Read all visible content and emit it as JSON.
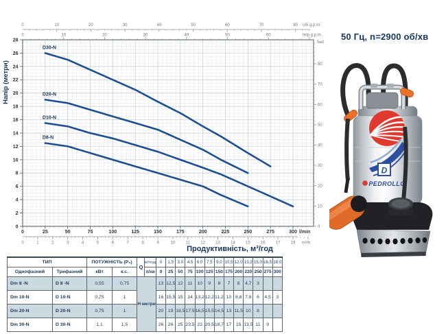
{
  "header": {
    "frequency_title": "50 Гц, n=2900 об/хв"
  },
  "chart_data": {
    "type": "line",
    "title": "",
    "xlabel": "Продуктивність, м³/год",
    "ylabel": "Напір (метри)",
    "grid": true,
    "x_axis_lmin": {
      "unit": "l/min",
      "ticks": [
        0,
        25,
        50,
        75,
        100,
        125,
        150,
        175,
        200,
        225,
        250,
        275,
        300
      ],
      "max": 323
    },
    "x_axis_m3h": {
      "unit": "m³/h",
      "ticks": [
        0,
        1,
        2,
        3,
        4,
        5,
        6,
        7,
        8,
        9,
        10,
        11,
        12,
        13,
        14,
        15,
        16,
        17,
        18
      ],
      "lmin_per_unit": 16.6667
    },
    "top_axis_us_gpm": {
      "unit": "US g.p.m.",
      "ticks": [
        0,
        10,
        20,
        30,
        40,
        50,
        60,
        70,
        80
      ],
      "lmin_per_unit": 3.785
    },
    "top_axis_imp_gpm": {
      "unit": "Imp g.p.m.",
      "ticks": [
        0,
        10,
        20,
        30,
        40,
        50,
        60
      ],
      "lmin_per_unit": 4.546
    },
    "right_axis_feet": {
      "unit": "feet",
      "ticks": [
        0,
        10,
        20,
        30,
        40,
        50,
        60,
        70,
        80
      ],
      "m_per_unit": 0.3048
    },
    "y_axis_m": {
      "ticks": [
        0,
        2,
        4,
        6,
        8,
        10,
        12,
        14,
        16,
        18,
        20,
        22,
        24,
        26,
        28
      ],
      "max": 28
    },
    "series": [
      {
        "name": "D30-N",
        "points_lmin_m": [
          [
            25,
            26
          ],
          [
            50,
            25
          ],
          [
            75,
            23.5
          ],
          [
            100,
            22
          ],
          [
            125,
            20.5
          ],
          [
            150,
            18.7
          ],
          [
            175,
            17
          ],
          [
            200,
            15
          ],
          [
            220,
            13.5
          ],
          [
            250,
            11
          ],
          [
            275,
            9
          ]
        ]
      },
      {
        "name": "D20-N",
        "points_lmin_m": [
          [
            25,
            19
          ],
          [
            50,
            18.5
          ],
          [
            75,
            17.5
          ],
          [
            100,
            16.5
          ],
          [
            125,
            15.5
          ],
          [
            150,
            14.5
          ],
          [
            175,
            13
          ],
          [
            200,
            11.5
          ],
          [
            220,
            10
          ],
          [
            250,
            8
          ]
        ]
      },
      {
        "name": "D10-N",
        "points_lmin_m": [
          [
            25,
            15.5
          ],
          [
            50,
            15
          ],
          [
            75,
            14
          ],
          [
            100,
            13.2
          ],
          [
            125,
            12.2
          ],
          [
            150,
            11.2
          ],
          [
            175,
            10
          ],
          [
            200,
            8.8
          ],
          [
            220,
            7.8
          ],
          [
            250,
            6
          ],
          [
            275,
            4.5
          ],
          [
            300,
            3
          ]
        ]
      },
      {
        "name": "D8-N",
        "points_lmin_m": [
          [
            25,
            12.5
          ],
          [
            50,
            12
          ],
          [
            75,
            11
          ],
          [
            100,
            10
          ],
          [
            125,
            9
          ],
          [
            150,
            8
          ],
          [
            175,
            7
          ],
          [
            200,
            6
          ],
          [
            220,
            4.7
          ],
          [
            250,
            3
          ]
        ]
      }
    ],
    "colors": {
      "curve": "#1d4f8e",
      "grid_minor": "#e2e6ea",
      "grid_major": "#c3cbd3",
      "frame": "#4a5560",
      "tick_primary": "#2a3138",
      "tick_secondary": "#6f7780",
      "label_navy": "#16355e"
    }
  },
  "table": {
    "header": {
      "type_label": "ТИП",
      "single_phase": "Однофазний",
      "three_phase": "Трифазний",
      "power_label": "ПОТУЖНІСТЬ (Р₂)",
      "kw": "кВт",
      "hp": "к.с.",
      "q_label": "Q",
      "q_m3h": "м³/год",
      "q_lmin": "л/хв",
      "h_label": "Н метри"
    },
    "q_m3h_values": [
      "0",
      "1,5",
      "3,0",
      "4,5",
      "6,0",
      "7,5",
      "9,0",
      "10,5",
      "12,0",
      "13,2",
      "15,0",
      "16,5",
      "18,0"
    ],
    "q_lmin_values": [
      "0",
      "25",
      "50",
      "75",
      "100",
      "125",
      "150",
      "175",
      "200",
      "220",
      "250",
      "275",
      "300"
    ],
    "rows": [
      {
        "single": "Dm 8  -N",
        "three": "D 8  -N",
        "kw": "0,55",
        "hp": "0,75",
        "h": [
          "13",
          "12,5",
          "12",
          "11",
          "10",
          "9",
          "8",
          "7",
          "6",
          "4,7",
          "3",
          "",
          ""
        ]
      },
      {
        "single": "Dm 10-N",
        "three": "D 10-N",
        "kw": "0,75",
        "hp": "1",
        "h": [
          "16",
          "15,5",
          "15",
          "14",
          "13,2",
          "12,2",
          "11,2",
          "10",
          "8,8",
          "7,8",
          "6",
          "4,5",
          "3"
        ]
      },
      {
        "single": "Dm 20-N",
        "three": "D 20-N",
        "kw": "0,75",
        "hp": "1",
        "h": [
          "20",
          "19",
          "18,5",
          "17,5",
          "16,5",
          "15,5",
          "14,5",
          "13",
          "11,5",
          "10",
          "8",
          "",
          ""
        ]
      },
      {
        "single": "Dm 30-N",
        "three": "D 30-N",
        "kw": "1,1",
        "hp": "1,5",
        "h": [
          "26",
          "26",
          "25",
          "23,5",
          "22",
          "20,5",
          "18,7",
          "17",
          "15",
          "13,5",
          "11",
          "9",
          ""
        ]
      }
    ]
  },
  "pump": {
    "brand": "PEDROLLO",
    "badge_letter": "D"
  }
}
